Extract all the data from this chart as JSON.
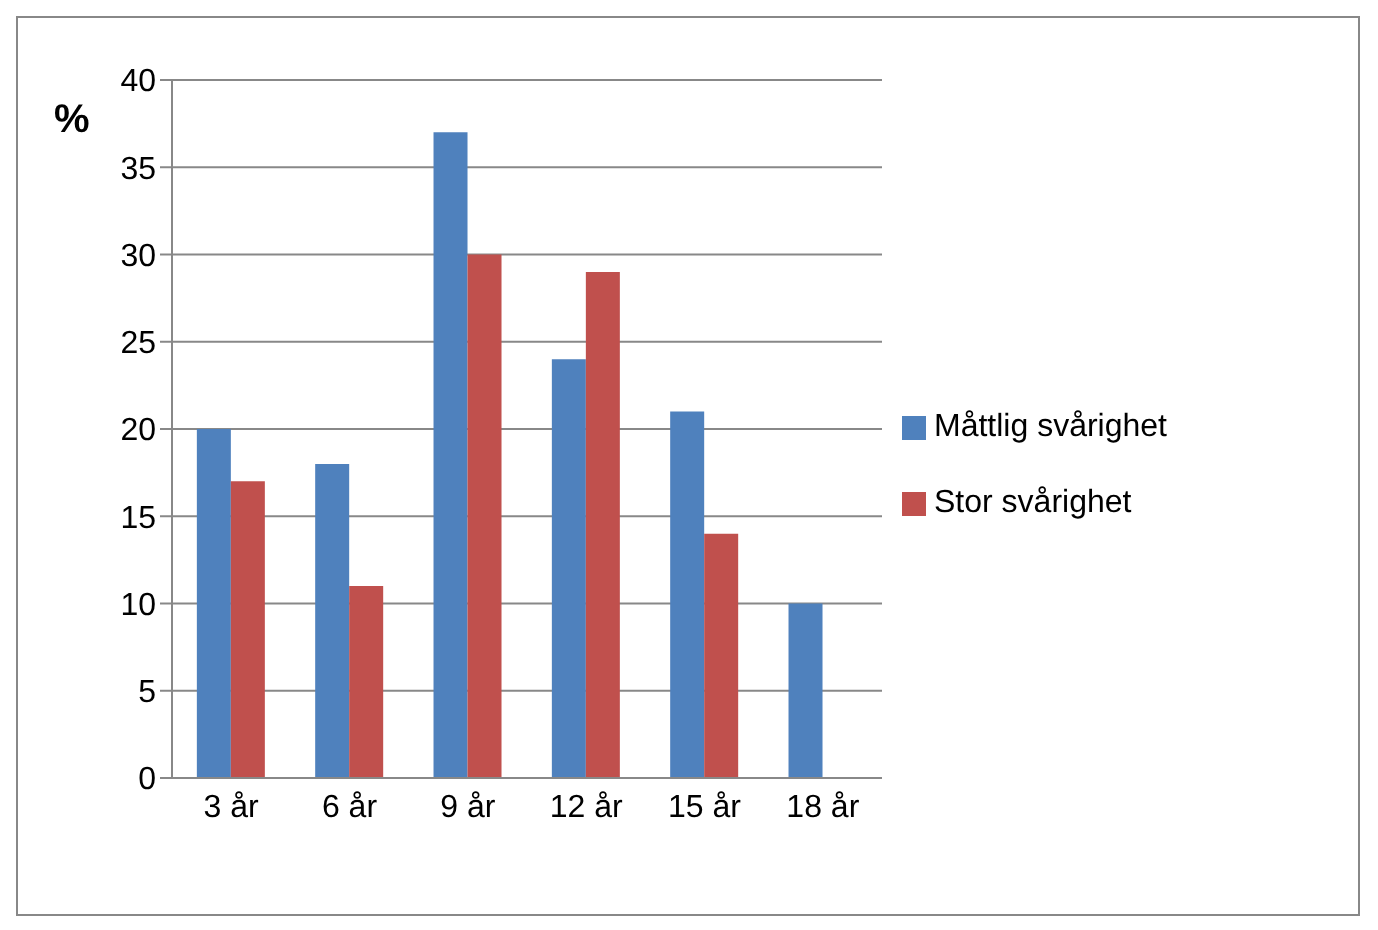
{
  "chart_data": {
    "type": "bar",
    "ylabel": "%",
    "categories": [
      "3 år",
      "6 år",
      "9 år",
      "12 år",
      "15 år",
      "18 år"
    ],
    "series": [
      {
        "name": "Måttlig svårighet",
        "color": "#4f81bd",
        "values": [
          20,
          18,
          37,
          24,
          21,
          10
        ]
      },
      {
        "name": "Stor svårighet",
        "color": "#c0504d",
        "values": [
          17,
          11,
          30,
          29,
          14,
          null
        ]
      }
    ],
    "ylim": [
      0,
      40
    ],
    "yticks": [
      0,
      5,
      10,
      15,
      20,
      25,
      30,
      35,
      40
    ],
    "grid": "y",
    "legend": "right"
  }
}
